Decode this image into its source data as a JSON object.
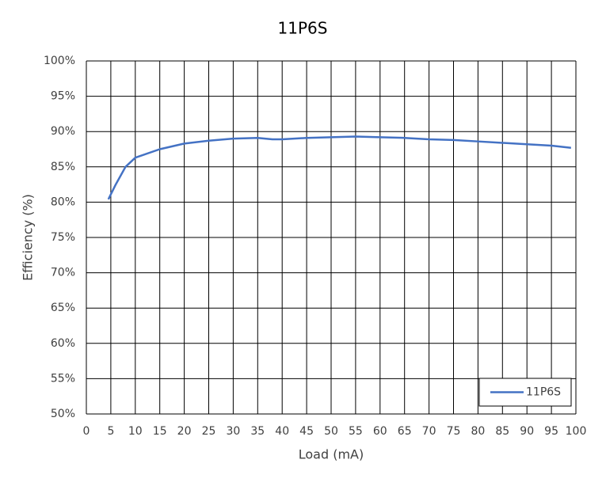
{
  "chart_data": {
    "type": "line",
    "title": "11P6S",
    "xlabel": "Load (mA)",
    "ylabel": "Efficiency (%)",
    "x": [
      4.5,
      6,
      8,
      10,
      15,
      20,
      25,
      30,
      35,
      38,
      40,
      45,
      50,
      55,
      60,
      65,
      70,
      75,
      80,
      85,
      90,
      95,
      99
    ],
    "series": [
      {
        "name": "11P6S",
        "color": "#4472c4",
        "values": [
          80.4,
          82.5,
          85.0,
          86.3,
          87.5,
          88.3,
          88.7,
          89.0,
          89.1,
          88.9,
          88.9,
          89.1,
          89.2,
          89.3,
          89.2,
          89.1,
          88.9,
          88.8,
          88.6,
          88.4,
          88.2,
          88.0,
          87.7
        ]
      }
    ],
    "xlim": [
      0,
      100
    ],
    "xticks": [
      0,
      5,
      10,
      15,
      20,
      25,
      30,
      35,
      40,
      45,
      50,
      55,
      60,
      65,
      70,
      75,
      80,
      85,
      90,
      95,
      100
    ],
    "ylim": [
      50,
      100
    ],
    "yticks": [
      {
        "value": 50,
        "label": "50%"
      },
      {
        "value": 55,
        "label": "55%"
      },
      {
        "value": 60,
        "label": "60%"
      },
      {
        "value": 65,
        "label": "65%"
      },
      {
        "value": 70,
        "label": "70%"
      },
      {
        "value": 75,
        "label": "75%"
      },
      {
        "value": 80,
        "label": "80%"
      },
      {
        "value": 85,
        "label": "85%"
      },
      {
        "value": 90,
        "label": "90%"
      },
      {
        "value": 95,
        "label": "95%"
      },
      {
        "value": 100,
        "label": "100%"
      }
    ],
    "grid": true,
    "legend": "lower right"
  }
}
